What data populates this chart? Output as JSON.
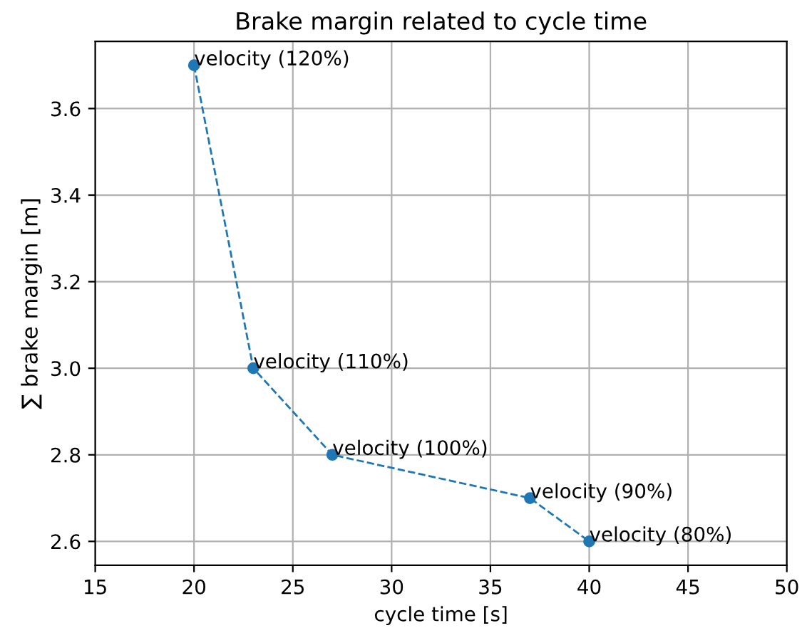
{
  "chart_data": {
    "type": "line",
    "title": "Brake margin related to cycle time",
    "xlabel": "cycle time [s]",
    "ylabel": "∑ brake margin [m]",
    "x": [
      20,
      23,
      27,
      37,
      40
    ],
    "series": [
      {
        "color": "#1f77b4",
        "values": [
          3.7,
          3.0,
          2.8,
          2.7,
          2.6
        ]
      }
    ],
    "xlim": [
      15,
      50
    ],
    "xticks": [
      15,
      20,
      25,
      30,
      35,
      40,
      45,
      50
    ],
    "ylim": [
      2.545,
      3.755
    ],
    "yticks": [
      {
        "value": 2.6,
        "label": "2.6"
      },
      {
        "value": 2.8,
        "label": "2.8"
      },
      {
        "value": 3.0,
        "label": "3.0"
      },
      {
        "value": 3.2,
        "label": "3.2"
      },
      {
        "value": 3.4,
        "label": "3.4"
      },
      {
        "value": 3.6,
        "label": "3.6"
      }
    ],
    "annotations": [
      {
        "text": "velocity (120%)",
        "x": 20,
        "y": 3.7
      },
      {
        "text": "velocity (110%)",
        "x": 23,
        "y": 3.0
      },
      {
        "text": "velocity (100%)",
        "x": 27,
        "y": 2.8
      },
      {
        "text": "velocity (90%)",
        "x": 37,
        "y": 2.7
      },
      {
        "text": "velocity (80%)",
        "x": 40,
        "y": 2.6
      }
    ],
    "grid": true,
    "marker": "circle",
    "line_style": "dashed"
  }
}
